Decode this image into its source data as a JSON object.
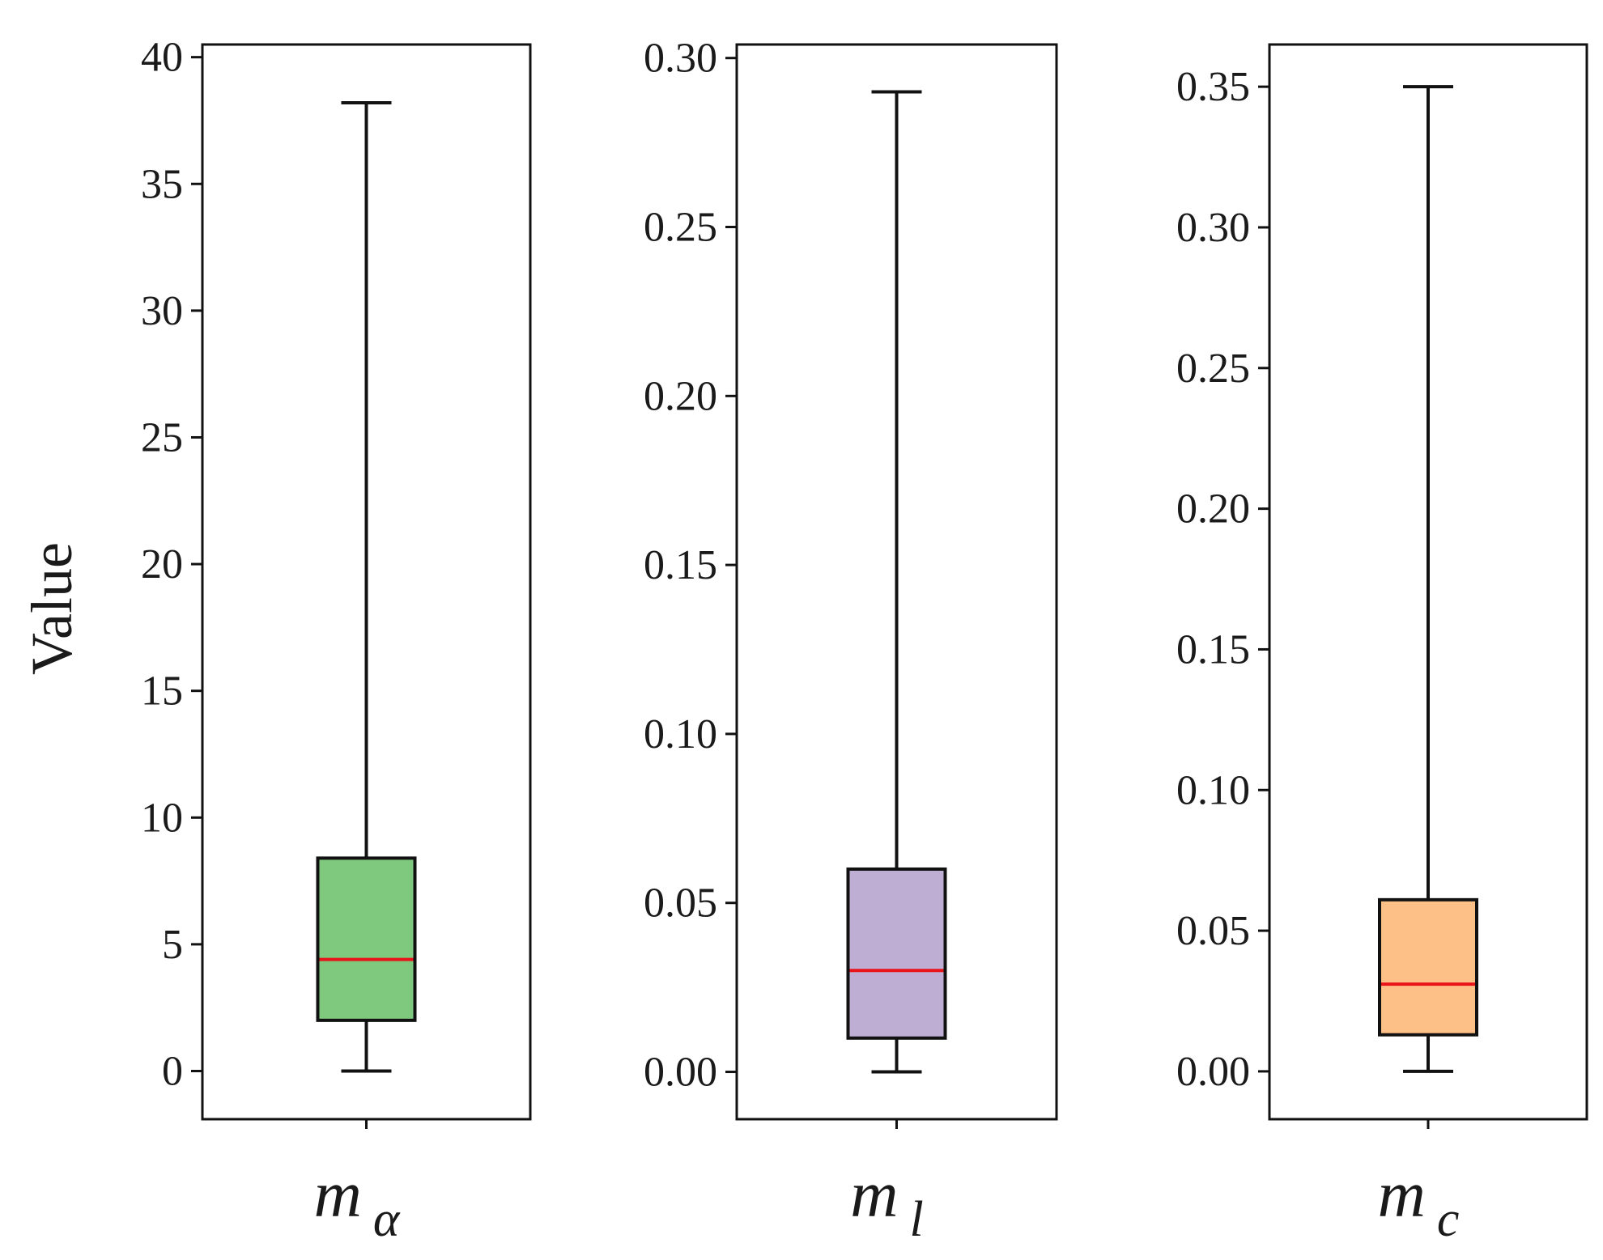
{
  "chart_data": [
    {
      "type": "box",
      "ylabel": "Value",
      "category": "m",
      "category_subscript": "α",
      "ylim": [
        -1.9,
        40.5
      ],
      "yticks": [
        0,
        5,
        10,
        15,
        20,
        25,
        30,
        35,
        40
      ],
      "ytick_labels": [
        "0",
        "5",
        "10",
        "15",
        "20",
        "25",
        "30",
        "35",
        "40"
      ],
      "box": {
        "whisker_low": 0,
        "q1": 2.0,
        "median": 4.4,
        "q3": 8.4,
        "whisker_high": 38.2
      },
      "fill_color": "#7fc97f",
      "median_color": "#e8141a"
    },
    {
      "type": "box",
      "category": "m",
      "category_subscript": "l",
      "ylim": [
        -0.014,
        0.304
      ],
      "yticks": [
        0.0,
        0.05,
        0.1,
        0.15,
        0.2,
        0.25,
        0.3
      ],
      "ytick_labels": [
        "0.00",
        "0.05",
        "0.10",
        "0.15",
        "0.20",
        "0.25",
        "0.30"
      ],
      "box": {
        "whisker_low": 0.0,
        "q1": 0.01,
        "median": 0.03,
        "q3": 0.06,
        "whisker_high": 0.29
      },
      "fill_color": "#beaed4",
      "median_color": "#e8141a"
    },
    {
      "type": "box",
      "category": "m",
      "category_subscript": "c",
      "ylim": [
        -0.017,
        0.365
      ],
      "yticks": [
        0.0,
        0.05,
        0.1,
        0.15,
        0.2,
        0.25,
        0.3,
        0.35
      ],
      "ytick_labels": [
        "0.00",
        "0.05",
        "0.10",
        "0.15",
        "0.20",
        "0.25",
        "0.30",
        "0.35"
      ],
      "box": {
        "whisker_low": 0.0,
        "q1": 0.013,
        "median": 0.031,
        "q3": 0.061,
        "whisker_high": 0.35
      },
      "fill_color": "#fdc086",
      "median_color": "#e8141a"
    }
  ]
}
